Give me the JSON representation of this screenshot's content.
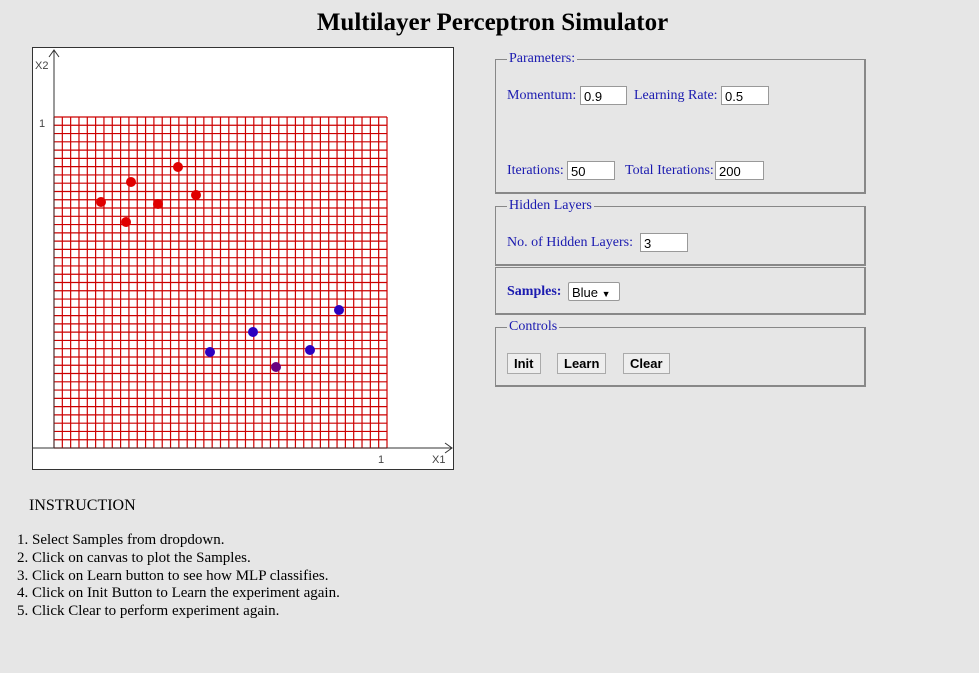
{
  "header": {
    "title": "Multilayer Perceptron Simulator"
  },
  "canvas": {
    "y_axis_label": "X2",
    "x_axis_label": "X1",
    "y_max_label": "1",
    "x_max_label": "1"
  },
  "parameters": {
    "legend": "Parameters:",
    "momentum_label": "Momentum:",
    "momentum_value": "0.9",
    "learning_rate_label": "Learning Rate:",
    "learning_rate_value": "0.5",
    "iterations_label": "Iterations:",
    "iterations_value": "50",
    "total_iterations_label": "Total Iterations:",
    "total_iterations_value": "200"
  },
  "hidden_layers": {
    "legend": "Hidden Layers",
    "label": "No. of Hidden Layers:",
    "value": "3"
  },
  "samples": {
    "label": "Samples:",
    "selected": "Blue"
  },
  "controls": {
    "legend": "Controls",
    "buttons": [
      "Init",
      "Learn",
      "Clear"
    ]
  },
  "instructions": {
    "heading": "INSTRUCTION",
    "steps": [
      "Select Samples from dropdown.",
      "Click on canvas to plot the Samples.",
      "Click on Learn button to see how MLP classifies.",
      "Click on Init Button to Learn the experiment again.",
      "Click Clear to perform experiment again."
    ]
  }
}
